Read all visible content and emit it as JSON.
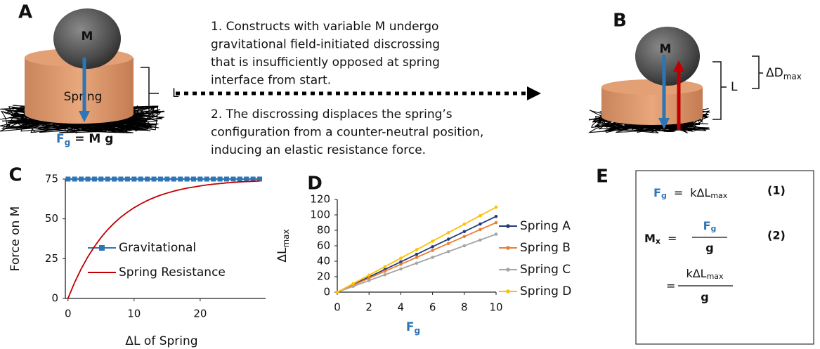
{
  "panel_a": {
    "label": "A",
    "ball": "M",
    "spring": "Spring",
    "length": "L",
    "force": {
      "base": "F",
      "sub": "g",
      "rest": "= M g"
    }
  },
  "steps": [
    [
      "1. Constructs with variable M undergo",
      "gravitational field-initiated discrossing",
      "that is insufficiently opposed at spring",
      "interface from start."
    ],
    [
      "2. The discrossing displaces the spring’s",
      "configuration from a counter-neutral position,",
      "inducing an elastic resistance force."
    ]
  ],
  "panel_b": {
    "label": "B",
    "ball": "M",
    "length": "L",
    "delta": {
      "base": "ΔD",
      "sub": "max"
    }
  },
  "chart_data": [
    {
      "type": "line",
      "panel": "C",
      "x_label": "ΔL of Spring",
      "y_label": "Force on M",
      "x": [
        0,
        1,
        2,
        3,
        4,
        5,
        6,
        7,
        8,
        9,
        10,
        11,
        12,
        13,
        14,
        15,
        16,
        17,
        18,
        19,
        20,
        21,
        22,
        23,
        24,
        25,
        26,
        27,
        28,
        29
      ],
      "series": [
        {
          "name": "Gravitational",
          "color": "#2e75b6",
          "marker": "square",
          "values": [
            75,
            75,
            75,
            75,
            75,
            75,
            75,
            75,
            75,
            75,
            75,
            75,
            75,
            75,
            75,
            75,
            75,
            75,
            75,
            75,
            75,
            75,
            75,
            75,
            75,
            75,
            75,
            75,
            75,
            75
          ]
        },
        {
          "name": "Spring Resistance",
          "color": "#c00000",
          "marker": "none",
          "values": [
            0,
            10.0,
            18.6,
            26.1,
            32.6,
            38.3,
            43.2,
            47.4,
            51.1,
            54.2,
            57.0,
            59.4,
            61.5,
            63.3,
            64.9,
            66.2,
            67.4,
            68.4,
            69.3,
            70.0,
            70.7,
            71.3,
            71.8,
            72.2,
            72.6,
            72.9,
            73.2,
            73.4,
            73.6,
            73.8
          ]
        }
      ],
      "xlim": [
        -0.4,
        29.9
      ],
      "xticks": [
        0,
        10,
        20
      ],
      "ylim": [
        0,
        75
      ],
      "yticks": [
        0,
        25,
        50,
        75
      ],
      "grid": false,
      "legend": "center"
    },
    {
      "type": "line",
      "panel": "D",
      "x_label": {
        "base": "F",
        "sub": "g"
      },
      "y_label": {
        "base": "ΔL",
        "sub": "max"
      },
      "x": [
        0,
        1,
        2,
        3,
        4,
        5,
        6,
        7,
        8,
        9,
        10
      ],
      "series": [
        {
          "name": "Spring A",
          "color": "#1f3d7a",
          "marker": "circle",
          "values": [
            0,
            9.8,
            19.6,
            29.4,
            39.2,
            49,
            58.8,
            68.6,
            78.4,
            88.2,
            98
          ]
        },
        {
          "name": "Spring B",
          "color": "#ed7d31",
          "marker": "circle",
          "values": [
            0,
            9,
            18,
            27,
            36,
            45,
            54,
            63,
            72,
            81,
            90
          ]
        },
        {
          "name": "Spring C",
          "color": "#a5a5a5",
          "marker": "circle",
          "values": [
            0,
            7.5,
            15,
            22.5,
            30,
            37.5,
            45,
            52.5,
            60,
            67.5,
            75
          ]
        },
        {
          "name": "Spring D",
          "color": "#ffc000",
          "marker": "circle",
          "values": [
            0,
            11,
            22,
            33,
            44,
            55,
            66,
            77,
            88,
            99,
            110
          ]
        }
      ],
      "xlim": [
        0,
        10
      ],
      "xticks": [
        0,
        2,
        4,
        6,
        8,
        10
      ],
      "ylim": [
        0,
        120
      ],
      "yticks": [
        0,
        20,
        40,
        60,
        80,
        100,
        120
      ],
      "grid": false,
      "legend": "right"
    }
  ],
  "panel_e": {
    "label": "E",
    "eq1": {
      "lhs": "F",
      "lhs_sub": "g",
      "eq": "=",
      "rhs": "kΔL",
      "rhs_sub": "max",
      "num": "(1)"
    },
    "eq2": {
      "lhs": "M",
      "lhs_sub": "x",
      "eq": "=",
      "numerator": "F",
      "numerator_sub": "g",
      "denominator": "g",
      "num": "(2)"
    },
    "eq3": {
      "eq": "=",
      "numerator": "kΔL",
      "numerator_sub": "max",
      "denominator": "g"
    }
  }
}
